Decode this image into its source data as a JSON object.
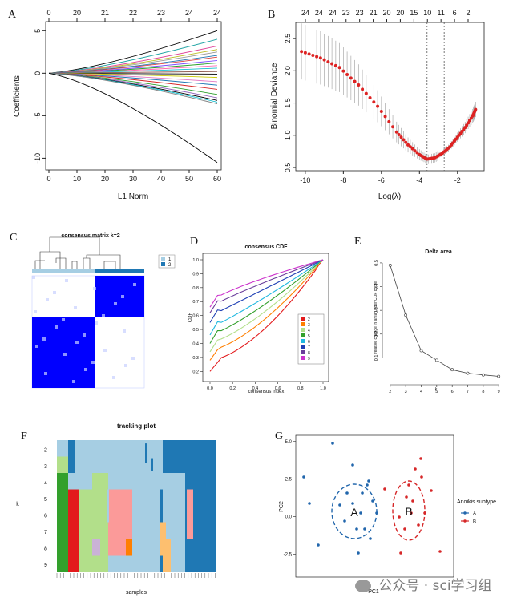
{
  "chart_data": [
    {
      "id": "A",
      "type": "line",
      "panel_letter": "A",
      "xlabel": "L1 Norm",
      "ylabel": "Coefficients",
      "xlim": [
        0,
        60
      ],
      "ylim": [
        -11,
        5.5
      ],
      "x_ticks": [
        "0",
        "10",
        "20",
        "30",
        "40",
        "50",
        "60"
      ],
      "y_ticks": [
        "-10",
        "-5",
        "0",
        "5"
      ],
      "top_ticks": [
        "0",
        "20",
        "21",
        "22",
        "23",
        "24",
        "24"
      ],
      "endpoints_at_60": [
        5.0,
        4.0,
        3.2,
        2.8,
        2.5,
        2.1,
        1.9,
        1.5,
        1.2,
        0.9,
        0.6,
        0.2,
        -0.1,
        -0.5,
        -1.0,
        -1.4,
        -1.9,
        -2.5,
        -2.9,
        -3.2,
        -3.4,
        -3.6,
        -10.5
      ],
      "colors": [
        "#000000",
        "#1fa3a3",
        "#e0489b",
        "#bcbd22",
        "#9a9a9a",
        "#1f77b4",
        "#d44",
        "#7c4dff",
        "#2ca02c",
        "#ff69b4",
        "#17becf",
        "#8c564b",
        "#000000",
        "#cc0",
        "#e377c2",
        "#1f77b4",
        "#d62728",
        "#2ca02c",
        "#9467bd",
        "#000000",
        "#17becf",
        "#7f7f7f",
        "#000000"
      ]
    },
    {
      "id": "B",
      "type": "scatter",
      "panel_letter": "B",
      "xlabel": "Log(λ)",
      "ylabel": "Binomial Deviance",
      "xlim": [
        -10.5,
        -0.6
      ],
      "ylim": [
        0.45,
        2.75
      ],
      "x_ticks": [
        "-10",
        "-8",
        "-6",
        "-4",
        "-2"
      ],
      "y_ticks": [
        "0.5",
        "1.0",
        "1.5",
        "2.0",
        "2.5"
      ],
      "top_ticks": [
        "24",
        "24",
        "24",
        "23",
        "23",
        "21",
        "20",
        "20",
        "15",
        "10",
        "11",
        "6",
        "2"
      ],
      "vlines": [
        -3.6,
        -2.7
      ],
      "points_loglambda": [
        -10.2,
        -9.2,
        -8.2,
        -7.2,
        -6.2,
        -5.2,
        -4.6,
        -4.0,
        -3.6,
        -3.2,
        -2.8,
        -2.4,
        -2.0,
        -1.6,
        -1.2,
        -1.05
      ],
      "points_deviance": [
        2.3,
        2.2,
        2.05,
        1.78,
        1.45,
        1.05,
        0.85,
        0.7,
        0.63,
        0.65,
        0.72,
        0.82,
        0.97,
        1.12,
        1.3,
        1.4
      ],
      "colors": {
        "point": "#dd2222",
        "errorbar": "#a9a9a9"
      }
    },
    {
      "id": "C",
      "type": "heatmap",
      "panel_letter": "C",
      "title": "consensus matrix k=2",
      "legend": [
        "1",
        "2"
      ],
      "colors": {
        "cluster1": "#a6cee3",
        "cluster2": "#1f78b4",
        "fill": "#0000ff"
      }
    },
    {
      "id": "D",
      "type": "line",
      "panel_letter": "D",
      "title": "consensus CDF",
      "xlabel": "consensus index",
      "ylabel": "CDF",
      "x_ticks": [
        "0.0",
        "0.2",
        "0.4",
        "0.6",
        "0.8",
        "1.0"
      ],
      "y_ticks": [
        "0.2",
        "0.3",
        "0.4",
        "0.5",
        "0.6",
        "0.7",
        "0.8",
        "0.9",
        "1.0"
      ],
      "series": [
        {
          "name": "2",
          "color": "#e31a1c",
          "start": 0.2
        },
        {
          "name": "3",
          "color": "#ff7f00",
          "start": 0.28
        },
        {
          "name": "4",
          "color": "#b2df8a",
          "start": 0.34
        },
        {
          "name": "5",
          "color": "#33a02c",
          "start": 0.4
        },
        {
          "name": "6",
          "color": "#1fb8e0",
          "start": 0.46
        },
        {
          "name": "7",
          "color": "#1f3fb4",
          "start": 0.55
        },
        {
          "name": "8",
          "color": "#6a3d9a",
          "start": 0.62
        },
        {
          "name": "9",
          "color": "#cc33cc",
          "start": 0.66
        }
      ]
    },
    {
      "id": "E",
      "type": "line",
      "panel_letter": "E",
      "title": "Delta area",
      "xlabel": "k",
      "ylabel": "relative change in area under CDF curve",
      "x": [
        2,
        3,
        4,
        5,
        6,
        7,
        8,
        9
      ],
      "values": [
        0.49,
        0.28,
        0.13,
        0.09,
        0.05,
        0.035,
        0.028,
        0.022
      ],
      "x_ticks": [
        "2",
        "3",
        "4",
        "5",
        "6",
        "7",
        "8",
        "9"
      ],
      "y_ticks": [
        "0.1",
        "0.2",
        "0.3",
        "0.4",
        "0.5"
      ]
    },
    {
      "id": "F",
      "type": "heatmap",
      "panel_letter": "F",
      "title": "tracking plot",
      "xlabel": "samples",
      "ylabel": "k",
      "rows": [
        "2",
        "3",
        "4",
        "5",
        "6",
        "7",
        "8",
        "9"
      ]
    },
    {
      "id": "G",
      "type": "scatter",
      "panel_letter": "G",
      "xlabel": "PC1",
      "ylabel": "PC2",
      "y_ticks": [
        "5.0",
        "2.5",
        "0.0",
        "-2.5"
      ],
      "legend_title": "Anoikis subtype",
      "series": [
        {
          "name": "A",
          "color": "#2166ac",
          "label": "A"
        },
        {
          "name": "B",
          "color": "#d62728",
          "label": "B"
        }
      ]
    }
  ],
  "watermark": "公众号 · sci学习组"
}
